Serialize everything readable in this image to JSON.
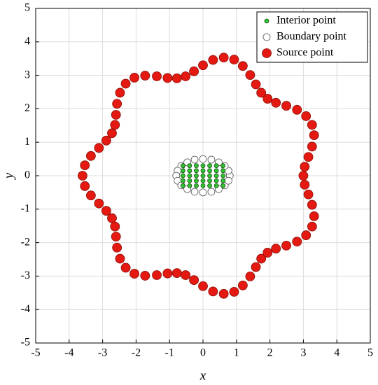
{
  "chart_data": {
    "type": "scatter",
    "xlabel": "x",
    "ylabel": "y",
    "xlim": [
      -5,
      5
    ],
    "ylim": [
      -5,
      5
    ],
    "xticks": [
      -5,
      -4,
      -3,
      -2,
      -1,
      0,
      1,
      2,
      3,
      4,
      5
    ],
    "yticks": [
      -5,
      -4,
      -3,
      -2,
      -1,
      0,
      1,
      2,
      3,
      4,
      5
    ],
    "grid": true,
    "legend": "upper right",
    "series": [
      {
        "name": "Interior point",
        "color": "#2fc42f",
        "edge": "#1a4d1a",
        "size": 3,
        "x": [
          -0.6,
          -0.4,
          -0.2,
          0,
          0.2,
          0.4,
          0.6,
          -0.6,
          -0.4,
          -0.2,
          0,
          0.2,
          0.4,
          0.6,
          -0.6,
          -0.4,
          -0.2,
          0,
          0.2,
          0.4,
          0.6,
          -0.6,
          -0.4,
          -0.2,
          0,
          0.2,
          0.4,
          0.6,
          -0.6,
          -0.4,
          -0.2,
          0,
          0.2,
          0.4,
          0.6
        ],
        "y": [
          -0.3,
          -0.3,
          -0.3,
          -0.3,
          -0.3,
          -0.3,
          -0.3,
          -0.15,
          -0.15,
          -0.15,
          -0.15,
          -0.15,
          -0.15,
          -0.15,
          0,
          0,
          0,
          0,
          0,
          0,
          0,
          0.15,
          0.15,
          0.15,
          0.15,
          0.15,
          0.15,
          0.15,
          0.3,
          0.3,
          0.3,
          0.3,
          0.3,
          0.3,
          0.3
        ]
      },
      {
        "name": "Boundary point",
        "color": "#ffffff",
        "edge": "#555555",
        "size": 5,
        "x": [
          0.8,
          0.76,
          0.65,
          0.47,
          0.25,
          0,
          -0.25,
          -0.47,
          -0.65,
          -0.76,
          -0.8,
          -0.76,
          -0.65,
          -0.47,
          -0.25,
          0,
          0.25,
          0.47,
          0.65,
          0.76
        ],
        "y": [
          0,
          0.15,
          0.29,
          0.4,
          0.48,
          0.5,
          0.48,
          0.4,
          0.29,
          0.15,
          0,
          -0.15,
          -0.29,
          -0.4,
          -0.48,
          -0.5,
          -0.48,
          -0.4,
          -0.29,
          -0.15
        ]
      },
      {
        "name": "Source point",
        "color": "#e41a12",
        "edge": "#8a0d08",
        "size": 6.5,
        "x": [
          3.0,
          3.04,
          3.15,
          3.26,
          3.32,
          3.26,
          3.08,
          2.81,
          2.49,
          2.18,
          1.93,
          1.74,
          1.58,
          1.41,
          1.19,
          0.93,
          0.62,
          0.3,
          0.0,
          -0.27,
          -0.52,
          -0.78,
          -1.06,
          -1.38,
          -1.73,
          -2.05,
          -2.31,
          -2.48,
          -2.57,
          -2.6,
          -2.63,
          -2.72,
          -2.89,
          -3.11,
          -3.35,
          -3.53,
          -3.6,
          -3.53,
          -3.35,
          -3.11,
          -2.89,
          -2.72,
          -2.63,
          -2.6,
          -2.57,
          -2.48,
          -2.31,
          -2.05,
          -1.73,
          -1.38,
          -1.06,
          -0.78,
          -0.52,
          -0.27,
          0.0,
          0.3,
          0.62,
          0.93,
          1.19,
          1.41,
          1.58,
          1.74,
          1.93,
          2.18,
          2.49,
          2.81,
          3.08,
          3.26,
          3.32,
          3.26,
          3.15,
          3.04
        ],
        "y": [
          0.0,
          0.27,
          0.56,
          0.87,
          1.21,
          1.52,
          1.78,
          1.97,
          2.09,
          2.18,
          2.3,
          2.48,
          2.73,
          3.01,
          3.28,
          3.47,
          3.53,
          3.46,
          3.3,
          3.12,
          2.97,
          2.91,
          2.92,
          2.97,
          2.99,
          2.93,
          2.75,
          2.48,
          2.15,
          1.82,
          1.52,
          1.27,
          1.05,
          0.83,
          0.59,
          0.31,
          0.0,
          -0.31,
          -0.59,
          -0.83,
          -1.05,
          -1.27,
          -1.52,
          -1.82,
          -2.15,
          -2.48,
          -2.75,
          -2.93,
          -2.99,
          -2.97,
          -2.92,
          -2.91,
          -2.97,
          -3.12,
          -3.3,
          -3.46,
          -3.53,
          -3.47,
          -3.28,
          -3.01,
          -2.73,
          -2.48,
          -2.3,
          -2.18,
          -2.09,
          -1.97,
          -1.78,
          -1.52,
          -1.21,
          -0.87,
          -0.56,
          -0.27
        ]
      }
    ]
  }
}
